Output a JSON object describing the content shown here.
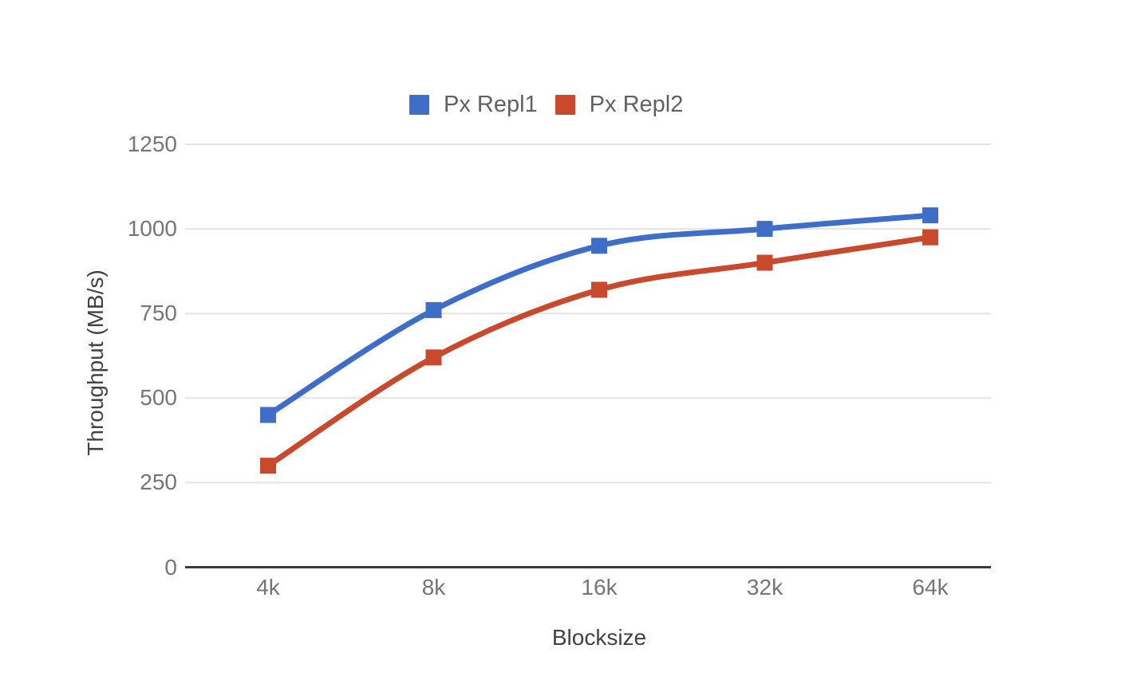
{
  "chart_data": {
    "type": "line",
    "categories": [
      "4k",
      "8k",
      "16k",
      "32k",
      "64k"
    ],
    "series": [
      {
        "name": "Px Repl1",
        "color": "#3F6EC8",
        "values": [
          450,
          760,
          950,
          1000,
          1040
        ]
      },
      {
        "name": "Px Repl2",
        "color": "#C8492C",
        "values": [
          300,
          620,
          820,
          900,
          975
        ]
      }
    ],
    "xlabel": "Blocksize",
    "ylabel": "Throughput (MB/s)",
    "ylim": [
      0,
      1250
    ],
    "yticks": [
      0,
      250,
      500,
      750,
      1000,
      1250
    ],
    "grid": "horizontal-only",
    "legend_position": "top-center",
    "line_style": "smooth",
    "marker": "square"
  },
  "styles": {
    "background": "#FFFFFF",
    "grid_color": "#E3E3E3",
    "axis_line_color": "#3A3A3A",
    "tick_label_color": "#757575",
    "axis_title_color": "#424242",
    "legend_text_color": "#616161"
  }
}
